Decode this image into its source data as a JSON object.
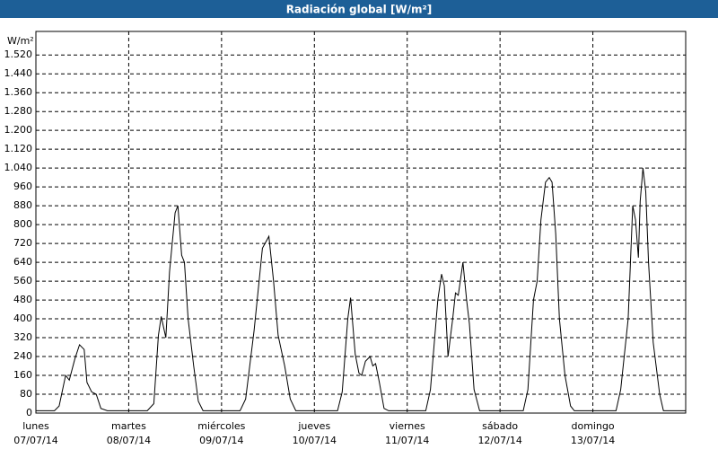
{
  "chart_data": {
    "type": "line",
    "title": "Radiación global [W/m²]",
    "y_label": "W/m²",
    "xlim": [
      0,
      7
    ],
    "ylim": [
      0,
      1620
    ],
    "yticks": [
      0,
      80,
      160,
      240,
      320,
      400,
      480,
      560,
      640,
      720,
      800,
      880,
      960,
      {
        "value": 1040,
        "label": "1.040"
      },
      {
        "value": 1120,
        "label": "1.120"
      },
      {
        "value": 1200,
        "label": "1.200"
      },
      {
        "value": 1280,
        "label": "1.280"
      },
      {
        "value": 1360,
        "label": "1.360"
      },
      {
        "value": 1440,
        "label": "1.440"
      },
      {
        "value": 1520,
        "label": "1.520"
      }
    ],
    "xticks": [
      {
        "value": 0,
        "label": "lunes",
        "date": "07/07/14"
      },
      {
        "value": 1,
        "label": "martes",
        "date": "08/07/14"
      },
      {
        "value": 2,
        "label": "miércoles",
        "date": "09/07/14"
      },
      {
        "value": 3,
        "label": "jueves",
        "date": "10/07/14"
      },
      {
        "value": 4,
        "label": "viernes",
        "date": "11/07/14"
      },
      {
        "value": 5,
        "label": "sábado",
        "date": "12/07/14"
      },
      {
        "value": 6,
        "label": "domingo",
        "date": "13/07/14"
      }
    ],
    "grid": true,
    "series": [
      {
        "color": "#000000",
        "x": [
          0,
          0.2,
          0.25,
          0.32,
          0.36,
          0.42,
          0.47,
          0.52,
          0.55,
          0.6,
          0.65,
          0.7,
          0.77,
          1,
          1.2,
          1.27,
          1.32,
          1.35,
          1.4,
          1.44,
          1.5,
          1.53,
          1.57,
          1.6,
          1.64,
          1.7,
          1.75,
          1.8,
          2,
          2.2,
          2.26,
          2.35,
          2.44,
          2.51,
          2.56,
          2.61,
          2.68,
          2.74,
          2.8,
          3,
          3.25,
          3.3,
          3.36,
          3.39,
          3.44,
          3.48,
          3.51,
          3.55,
          3.6,
          3.63,
          3.66,
          3.7,
          3.75,
          3.8,
          4,
          4.2,
          4.25,
          4.33,
          4.37,
          4.4,
          4.44,
          4.49,
          4.52,
          4.55,
          4.6,
          4.64,
          4.67,
          4.72,
          4.78,
          5,
          5.25,
          5.3,
          5.36,
          5.4,
          5.44,
          5.49,
          5.53,
          5.56,
          5.6,
          5.64,
          5.7,
          5.76,
          5.8,
          6,
          6.25,
          6.3,
          6.38,
          6.43,
          6.46,
          6.49,
          6.51,
          6.54,
          6.57,
          6.6,
          6.65,
          6.72,
          6.76,
          7
        ],
        "values": [
          10,
          10,
          30,
          160,
          140,
          230,
          290,
          270,
          130,
          90,
          80,
          20,
          10,
          10,
          10,
          40,
          330,
          410,
          320,
          600,
          850,
          880,
          670,
          640,
          400,
          200,
          50,
          10,
          10,
          10,
          60,
          350,
          700,
          750,
          560,
          330,
          200,
          60,
          10,
          10,
          10,
          90,
          400,
          490,
          250,
          170,
          160,
          220,
          240,
          200,
          210,
          130,
          20,
          10,
          10,
          10,
          100,
          480,
          590,
          540,
          240,
          400,
          510,
          500,
          640,
          480,
          380,
          100,
          10,
          10,
          10,
          100,
          480,
          560,
          820,
          980,
          1000,
          980,
          760,
          400,
          160,
          30,
          10,
          10,
          10,
          100,
          400,
          880,
          820,
          660,
          900,
          1040,
          940,
          640,
          300,
          80,
          10,
          10
        ]
      }
    ]
  }
}
